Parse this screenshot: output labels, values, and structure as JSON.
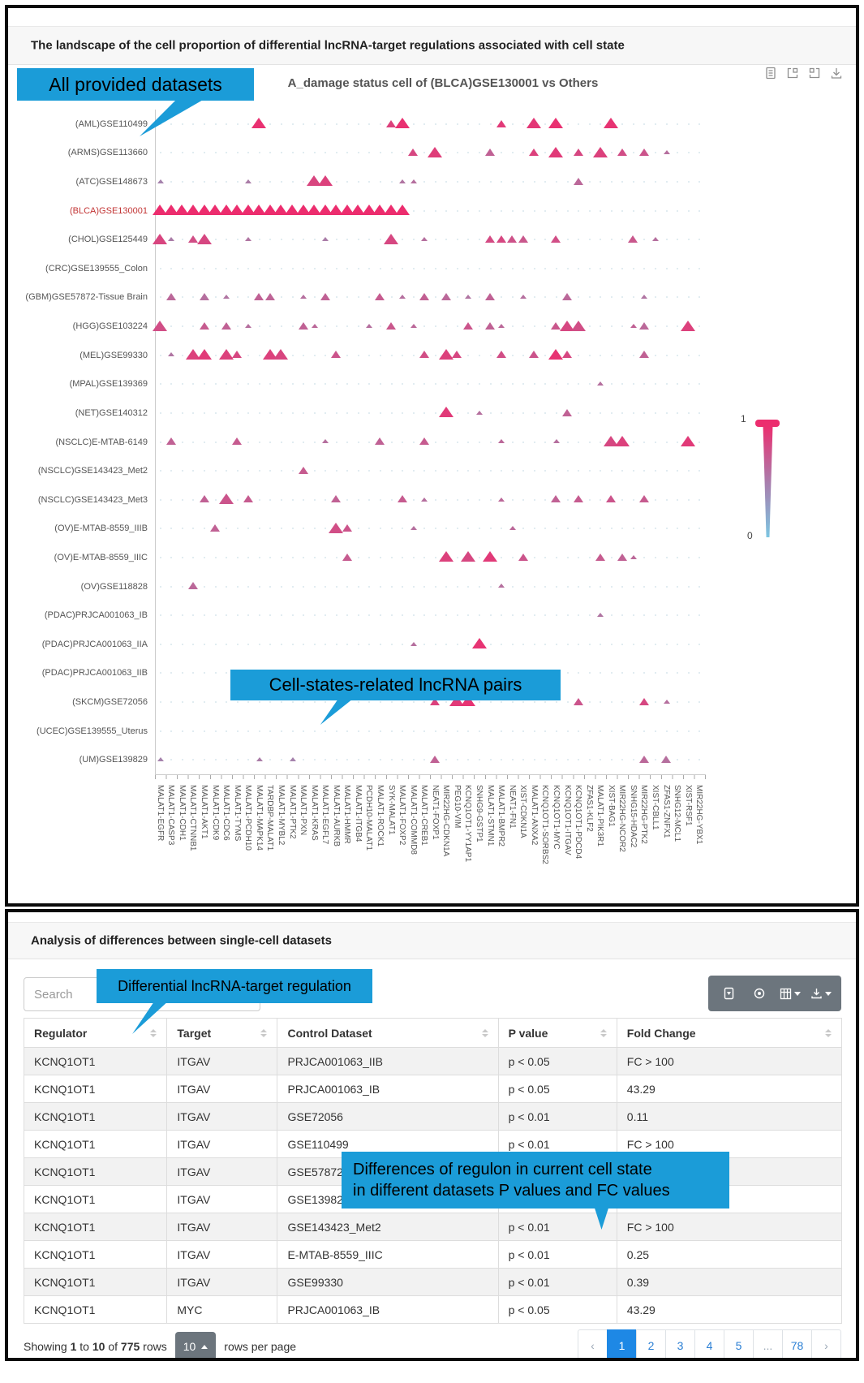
{
  "colors": {
    "annotation_blue": "#1b9cd8",
    "highlight_red": "#c23434",
    "scale_max_color": "#ec2d6e",
    "scale_min_color": "#7cc6e2",
    "toolbar_gray": "#6c757d",
    "active_page_blue": "#1e88e5"
  },
  "panel1": {
    "header": "The landscape of the cell proportion of differential lncRNA-target regulations associated with cell state",
    "chart_title": "A_damage status cell of (BLCA)GSE130001 vs Others",
    "annotations": {
      "datasets": "All provided datasets",
      "pairs": "Cell-states-related lncRNA pairs"
    },
    "legend": {
      "max": "1",
      "min": "0"
    },
    "toolbox_icons": [
      "data-view-icon",
      "frame-icon",
      "frame-icon",
      "save-image-icon"
    ]
  },
  "chart_data": {
    "type": "scatter",
    "marker": "triangle",
    "title": "A_damage status cell of (BLCA)GSE130001 vs Others",
    "legend_position": "right",
    "color_scale": {
      "min": 0,
      "max": 1,
      "min_color": "#7cc6e2",
      "max_color": "#ec2d6e"
    },
    "highlight_y": "(BLCA)GSE130001",
    "x_categories": [
      "MALAT1-EGFR",
      "MALAT1-CASP3",
      "MALAT1-CDH1",
      "MALAT1-CTNNB1",
      "MALAT1-AKT1",
      "MALAT1-CDK9",
      "MALAT1-CDC6",
      "MALAT1-TYMS",
      "MALAT1-PCDH10",
      "MALAT1-MAPK14",
      "TARDBP-MALAT1",
      "MALAT1-MYBL2",
      "MALAT1-PTK2",
      "MALAT1-PXN",
      "MALAT1-KRAS",
      "MALAT1-EGFL7",
      "MALAT1-AURKB",
      "MALAT1-HMMR",
      "MALAT1-ITGB4",
      "PCDH10-MALAT1",
      "MALAT1-ROCK1",
      "SYK-MALAT1",
      "MALAT1-FOXP2",
      "MALAT1-COMMD8",
      "MALAT1-CREB1",
      "NEAT1-FOXP1",
      "MIR22HG-CDKN1A",
      "PEG10-VIM",
      "KCNQ1OT1-YY1AP1",
      "SNHG9-GSTP1",
      "MALAT1-STMN1",
      "MALAT1-BMPR2",
      "NEAT1-FN1",
      "XIST-CDKN1A",
      "MALAT1-ANXA2",
      "KCNQ1OT1-SORBS2",
      "KCNQ1OT1-MYC",
      "KCNQ1OT1-ITGAV",
      "KCNQ1OT1-PDCD4",
      "ZFAS1-KLF2",
      "MALAT1-PIK3R1",
      "XIST-BAG1",
      "MIR22HG-NCOR2",
      "SNHG15-HDAC2",
      "MIR22HG-PTK2",
      "XIST-CBLL1",
      "ZFAS1-ZNFX1",
      "SNHG12-MCL1",
      "XIST-RSF1",
      "MIR22HG-YBX1"
    ],
    "y_categories": [
      "(AML)GSE110499",
      "(ARMS)GSE113660",
      "(ATC)GSE148673",
      "(BLCA)GSE130001",
      "(CHOL)GSE125449",
      "(CRC)GSE139555_Colon",
      "(GBM)GSE57872-Tissue Brain",
      "(HGG)GSE103224",
      "(MEL)GSE99330",
      "(MPAL)GSE139369",
      "(NET)GSE140312",
      "(NSCLC)E-MTAB-6149",
      "(NSCLC)GSE143423_Met2",
      "(NSCLC)GSE143423_Met3",
      "(OV)E-MTAB-8559_IIIB",
      "(OV)E-MTAB-8559_IIIC",
      "(OV)GSE118828",
      "(PDAC)PRJCA001063_IB",
      "(PDAC)PRJCA001063_IIA",
      "(PDAC)PRJCA001063_IIB",
      "(SKCM)GSE72056",
      "(UCEC)GSE139555_Uterus",
      "(UM)GSE139829"
    ],
    "points": [
      [
        [
          9,
          3,
          0.97
        ],
        [
          21,
          2,
          0.85
        ],
        [
          22,
          3,
          0.97
        ],
        [
          31,
          2,
          0.9
        ],
        [
          34,
          3,
          0.92
        ],
        [
          36,
          3,
          0.97
        ],
        [
          41,
          3,
          0.95
        ]
      ],
      [
        [
          23,
          2,
          0.8
        ],
        [
          25,
          3,
          0.88
        ],
        [
          30,
          2,
          0.6
        ],
        [
          34,
          2,
          0.85
        ],
        [
          36,
          3,
          0.9
        ],
        [
          38,
          2,
          0.8
        ],
        [
          40,
          3,
          0.85
        ],
        [
          42,
          2,
          0.75
        ],
        [
          44,
          2,
          0.7
        ],
        [
          46,
          1,
          0.5
        ]
      ],
      [
        [
          0,
          1,
          0.35
        ],
        [
          8,
          1,
          0.4
        ],
        [
          14,
          3,
          0.82
        ],
        [
          15,
          3,
          0.85
        ],
        [
          22,
          1,
          0.45
        ],
        [
          23,
          1,
          0.5
        ],
        [
          38,
          2,
          0.55
        ]
      ],
      [
        [
          0,
          3,
          1
        ],
        [
          1,
          3,
          1
        ],
        [
          2,
          3,
          1
        ],
        [
          3,
          3,
          1
        ],
        [
          4,
          3,
          1
        ],
        [
          5,
          3,
          1
        ],
        [
          6,
          3,
          1
        ],
        [
          7,
          3,
          1
        ],
        [
          8,
          3,
          1
        ],
        [
          9,
          3,
          1
        ],
        [
          10,
          3,
          1
        ],
        [
          11,
          3,
          1
        ],
        [
          12,
          3,
          1
        ],
        [
          13,
          3,
          1
        ],
        [
          14,
          3,
          1
        ],
        [
          15,
          3,
          1
        ],
        [
          16,
          3,
          1
        ],
        [
          17,
          3,
          1
        ],
        [
          18,
          3,
          1
        ],
        [
          19,
          3,
          1
        ],
        [
          20,
          3,
          1
        ],
        [
          21,
          3,
          1
        ],
        [
          22,
          3,
          1
        ]
      ],
      [
        [
          0,
          3,
          0.82
        ],
        [
          1,
          1,
          0.4
        ],
        [
          3,
          2,
          0.75
        ],
        [
          4,
          3,
          0.8
        ],
        [
          8,
          1,
          0.45
        ],
        [
          15,
          1,
          0.4
        ],
        [
          21,
          3,
          0.8
        ],
        [
          24,
          1,
          0.5
        ],
        [
          30,
          2,
          0.78
        ],
        [
          31,
          2,
          0.8
        ],
        [
          32,
          2,
          0.72
        ],
        [
          33,
          2,
          0.68
        ],
        [
          36,
          2,
          0.75
        ],
        [
          43,
          2,
          0.68
        ],
        [
          45,
          1,
          0.5
        ]
      ],
      [],
      [
        [
          1,
          2,
          0.55
        ],
        [
          4,
          2,
          0.5
        ],
        [
          6,
          1,
          0.45
        ],
        [
          9,
          2,
          0.6
        ],
        [
          10,
          2,
          0.58
        ],
        [
          13,
          1,
          0.5
        ],
        [
          15,
          2,
          0.6
        ],
        [
          20,
          2,
          0.65
        ],
        [
          22,
          1,
          0.5
        ],
        [
          24,
          2,
          0.62
        ],
        [
          26,
          2,
          0.55
        ],
        [
          28,
          1,
          0.45
        ],
        [
          30,
          2,
          0.6
        ],
        [
          33,
          1,
          0.5
        ],
        [
          37,
          2,
          0.55
        ],
        [
          44,
          1,
          0.45
        ]
      ],
      [
        [
          0,
          3,
          0.75
        ],
        [
          4,
          2,
          0.65
        ],
        [
          6,
          2,
          0.6
        ],
        [
          8,
          1,
          0.5
        ],
        [
          13,
          2,
          0.6
        ],
        [
          14,
          1,
          0.55
        ],
        [
          19,
          1,
          0.5
        ],
        [
          21,
          2,
          0.68
        ],
        [
          23,
          1,
          0.55
        ],
        [
          28,
          2,
          0.7
        ],
        [
          30,
          2,
          0.6
        ],
        [
          31,
          1,
          0.55
        ],
        [
          36,
          2,
          0.68
        ],
        [
          37,
          3,
          0.8
        ],
        [
          38,
          3,
          0.75
        ],
        [
          43,
          1,
          0.6
        ],
        [
          44,
          2,
          0.55
        ],
        [
          48,
          3,
          0.85
        ]
      ],
      [
        [
          1,
          1,
          0.45
        ],
        [
          3,
          3,
          0.85
        ],
        [
          4,
          3,
          0.9
        ],
        [
          6,
          3,
          0.85
        ],
        [
          7,
          2,
          0.8
        ],
        [
          10,
          3,
          0.85
        ],
        [
          11,
          3,
          0.82
        ],
        [
          16,
          2,
          0.7
        ],
        [
          24,
          2,
          0.75
        ],
        [
          26,
          3,
          0.85
        ],
        [
          27,
          2,
          0.8
        ],
        [
          31,
          2,
          0.75
        ],
        [
          34,
          2,
          0.7
        ],
        [
          36,
          3,
          0.95
        ],
        [
          37,
          2,
          0.8
        ],
        [
          44,
          2,
          0.6
        ]
      ],
      [
        [
          40,
          1,
          0.5
        ]
      ],
      [
        [
          26,
          3,
          0.9
        ],
        [
          29,
          1,
          0.5
        ],
        [
          37,
          2,
          0.6
        ]
      ],
      [
        [
          1,
          2,
          0.6
        ],
        [
          7,
          2,
          0.65
        ],
        [
          15,
          1,
          0.5
        ],
        [
          20,
          2,
          0.6
        ],
        [
          24,
          2,
          0.65
        ],
        [
          31,
          1,
          0.55
        ],
        [
          36,
          1,
          0.5
        ],
        [
          41,
          3,
          0.8
        ],
        [
          42,
          3,
          0.85
        ],
        [
          48,
          3,
          0.9
        ]
      ],
      [
        [
          13,
          2,
          0.65
        ]
      ],
      [
        [
          4,
          2,
          0.6
        ],
        [
          6,
          3,
          0.7
        ],
        [
          8,
          2,
          0.65
        ],
        [
          16,
          2,
          0.6
        ],
        [
          22,
          2,
          0.65
        ],
        [
          24,
          1,
          0.5
        ],
        [
          31,
          1,
          0.55
        ],
        [
          36,
          2,
          0.6
        ],
        [
          38,
          2,
          0.65
        ],
        [
          41,
          2,
          0.7
        ],
        [
          44,
          2,
          0.65
        ]
      ],
      [
        [
          5,
          2,
          0.6
        ],
        [
          16,
          3,
          0.75
        ],
        [
          17,
          2,
          0.7
        ],
        [
          23,
          1,
          0.5
        ],
        [
          32,
          1,
          0.55
        ]
      ],
      [
        [
          17,
          2,
          0.65
        ],
        [
          26,
          3,
          0.85
        ],
        [
          28,
          3,
          0.8
        ],
        [
          30,
          3,
          0.9
        ],
        [
          33,
          2,
          0.7
        ],
        [
          40,
          2,
          0.65
        ],
        [
          42,
          2,
          0.6
        ],
        [
          43,
          1,
          0.55
        ]
      ],
      [
        [
          3,
          2,
          0.55
        ],
        [
          31,
          1,
          0.5
        ]
      ],
      [
        [
          40,
          1,
          0.45
        ]
      ],
      [
        [
          23,
          1,
          0.5
        ],
        [
          29,
          3,
          0.95
        ]
      ],
      [],
      [
        [
          25,
          2,
          0.85
        ],
        [
          27,
          3,
          0.9
        ],
        [
          28,
          3,
          0.95
        ],
        [
          38,
          2,
          0.7
        ],
        [
          44,
          2,
          0.8
        ],
        [
          46,
          1,
          0.5
        ]
      ],
      [],
      [
        [
          0,
          1,
          0.35
        ],
        [
          9,
          1,
          0.4
        ],
        [
          12,
          1,
          0.35
        ],
        [
          25,
          2,
          0.6
        ],
        [
          44,
          2,
          0.55
        ],
        [
          46,
          2,
          0.5
        ]
      ]
    ]
  },
  "panel2": {
    "header": "Analysis of differences between single-cell datasets",
    "search": {
      "placeholder": "Search"
    },
    "annotations": {
      "regulation": "Differential lncRNA-target regulation",
      "differences_line1": "Differences of regulon in current cell state",
      "differences_line2": "in different datasets P values and FC values"
    },
    "toolbar_icons": [
      "filter-icon",
      "toggle-icon",
      "columns-icon",
      "export-icon"
    ],
    "table": {
      "columns": [
        "Regulator",
        "Target",
        "Control Dataset",
        "P value",
        "Fold Change"
      ],
      "rows": [
        [
          "KCNQ1OT1",
          "ITGAV",
          "PRJCA001063_IIB",
          "p < 0.05",
          "FC > 100"
        ],
        [
          "KCNQ1OT1",
          "ITGAV",
          "PRJCA001063_IB",
          "p < 0.05",
          "43.29"
        ],
        [
          "KCNQ1OT1",
          "ITGAV",
          "GSE72056",
          "p < 0.01",
          "0.11"
        ],
        [
          "KCNQ1OT1",
          "ITGAV",
          "GSE110499",
          "p < 0.01",
          "FC > 100"
        ],
        [
          "KCNQ1OT1",
          "ITGAV",
          "GSE57872",
          "",
          ""
        ],
        [
          "KCNQ1OT1",
          "ITGAV",
          "GSE13982",
          "",
          ""
        ],
        [
          "KCNQ1OT1",
          "ITGAV",
          "GSE143423_Met2",
          "p < 0.01",
          "FC > 100"
        ],
        [
          "KCNQ1OT1",
          "ITGAV",
          "E-MTAB-8559_IIIC",
          "p < 0.01",
          "0.25"
        ],
        [
          "KCNQ1OT1",
          "ITGAV",
          "GSE99330",
          "p < 0.01",
          "0.39"
        ],
        [
          "KCNQ1OT1",
          "MYC",
          "PRJCA001063_IB",
          "p < 0.05",
          "43.29"
        ]
      ]
    },
    "footer": {
      "showing_t1": "Showing ",
      "showing_n1": "1",
      "showing_t2": " to ",
      "showing_n2": "10",
      "showing_t3": " of ",
      "showing_n3": "775",
      "showing_t4": " rows",
      "page_size": "10",
      "rows_per_page_label": "rows per page"
    },
    "pagination": {
      "prev": "‹",
      "next": "›",
      "active": "1",
      "items": [
        "1",
        "2",
        "3",
        "4",
        "5",
        "...",
        "78"
      ]
    }
  }
}
